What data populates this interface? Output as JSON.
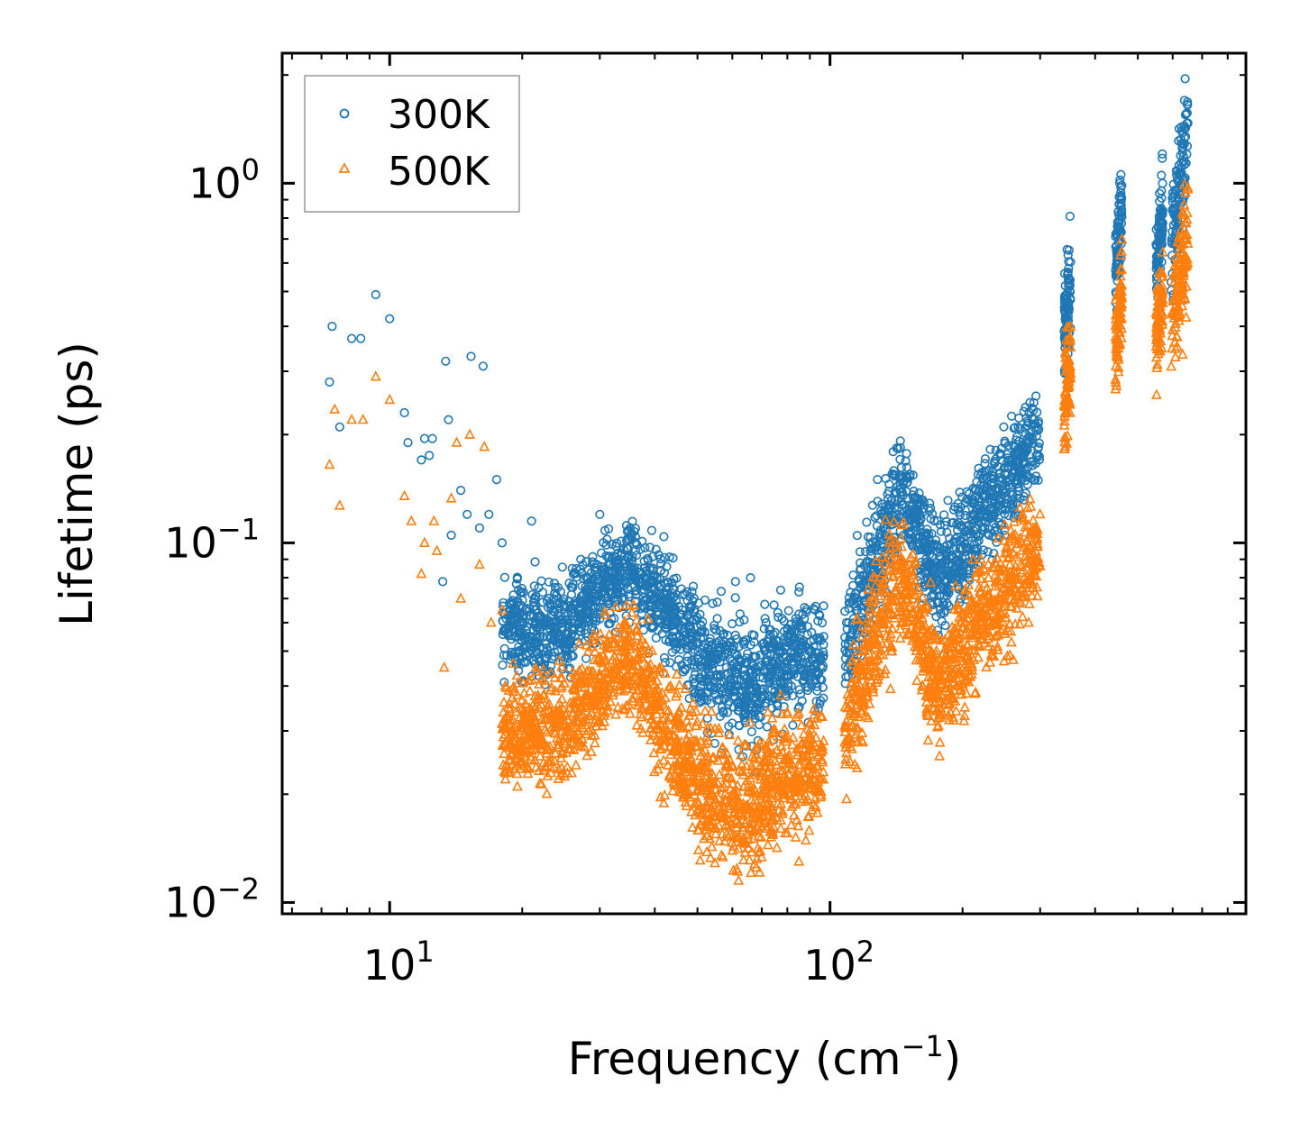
{
  "chart_data": {
    "type": "scatter",
    "xscale": "log",
    "yscale": "log",
    "xlabel": "Frequency (cm",
    "xlabel_sup": "−1",
    "xlabel_tail": ")",
    "ylabel": "Lifetime (ps)",
    "xlim": [
      5.7,
      880
    ],
    "ylim": [
      0.0093,
      2.3
    ],
    "x_ticks": [
      {
        "value": 10,
        "base": "10",
        "exp": "1"
      },
      {
        "value": 100,
        "base": "10",
        "exp": "2"
      }
    ],
    "y_ticks": [
      {
        "value": 1,
        "base": "10",
        "exp": "0"
      },
      {
        "value": 0.1,
        "base": "10",
        "exp": "−1"
      },
      {
        "value": 0.01,
        "base": "10",
        "exp": "−2"
      }
    ],
    "legend_position": "top-left",
    "series": [
      {
        "name": "300K",
        "marker": "circle",
        "color": "#1f77b4",
        "sparse_points": [
          [
            7.3,
            0.28
          ],
          [
            7.4,
            0.4
          ],
          [
            7.7,
            0.21
          ],
          [
            8.2,
            0.37
          ],
          [
            8.6,
            0.37
          ],
          [
            9.3,
            0.49
          ],
          [
            10.0,
            0.42
          ],
          [
            10.8,
            0.23
          ],
          [
            11.0,
            0.19
          ],
          [
            11.8,
            0.17
          ],
          [
            12.0,
            0.195
          ],
          [
            12.3,
            0.175
          ],
          [
            12.5,
            0.195
          ],
          [
            13.2,
            0.078
          ],
          [
            13.4,
            0.32
          ],
          [
            13.6,
            0.22
          ],
          [
            13.8,
            0.105
          ],
          [
            14.5,
            0.14
          ],
          [
            15.0,
            0.12
          ],
          [
            15.3,
            0.33
          ],
          [
            16.0,
            0.11
          ],
          [
            16.3,
            0.31
          ],
          [
            16.8,
            0.12
          ],
          [
            17.5,
            0.15
          ],
          [
            18.0,
            0.1
          ],
          [
            19.5,
            0.08
          ],
          [
            21.0,
            0.115
          ],
          [
            30.0,
            0.12
          ],
          [
            61.0,
            0.078
          ],
          [
            66.0,
            0.08
          ],
          [
            85.0,
            0.073
          ]
        ],
        "bands": [
          {
            "x": [
              18,
              26
            ],
            "y_mid": [
              0.055,
              0.06
            ],
            "spread": 1.35
          },
          {
            "x": [
              26,
              36
            ],
            "y_mid": [
              0.065,
              0.09
            ],
            "spread": 1.3
          },
          {
            "x": [
              36,
              50
            ],
            "y_mid": [
              0.085,
              0.05
            ],
            "spread": 1.35
          },
          {
            "x": [
              50,
              70
            ],
            "y_mid": [
              0.048,
              0.038
            ],
            "spread": 1.4
          },
          {
            "x": [
              70,
              97
            ],
            "y_mid": [
              0.045,
              0.05
            ],
            "spread": 1.35
          },
          {
            "x": [
              108,
              145
            ],
            "y_mid": [
              0.05,
              0.14
            ],
            "spread": 1.4
          },
          {
            "x": [
              145,
              175
            ],
            "y_mid": [
              0.14,
              0.08
            ],
            "spread": 1.35
          },
          {
            "x": [
              175,
              215
            ],
            "y_mid": [
              0.075,
              0.11
            ],
            "spread": 1.4
          },
          {
            "x": [
              215,
              300
            ],
            "y_mid": [
              0.12,
              0.2
            ],
            "spread": 1.3
          },
          {
            "x": [
              340,
              352
            ],
            "y_mid": [
              0.38,
              0.55
            ],
            "spread": 1.35
          },
          {
            "x": [
              445,
              460
            ],
            "y_mid": [
              0.55,
              0.85
            ],
            "spread": 1.3
          },
          {
            "x": [
              550,
              570
            ],
            "y_mid": [
              0.55,
              0.85
            ],
            "spread": 1.3
          },
          {
            "x": [
              595,
              650
            ],
            "y_mid": [
              0.65,
              1.5
            ],
            "spread": 1.4
          }
        ]
      },
      {
        "name": "500K",
        "marker": "triangle",
        "color": "#ff7f0e",
        "sparse_points": [
          [
            7.3,
            0.165
          ],
          [
            7.5,
            0.235
          ],
          [
            7.7,
            0.127
          ],
          [
            8.2,
            0.22
          ],
          [
            8.7,
            0.22
          ],
          [
            9.3,
            0.29
          ],
          [
            10.0,
            0.25
          ],
          [
            10.8,
            0.135
          ],
          [
            11.2,
            0.115
          ],
          [
            11.8,
            0.082
          ],
          [
            12.0,
            0.1
          ],
          [
            12.6,
            0.115
          ],
          [
            12.8,
            0.095
          ],
          [
            13.3,
            0.045
          ],
          [
            13.8,
            0.133
          ],
          [
            14.2,
            0.19
          ],
          [
            14.5,
            0.07
          ],
          [
            15.2,
            0.2
          ],
          [
            16.0,
            0.087
          ],
          [
            16.4,
            0.185
          ],
          [
            17.0,
            0.06
          ],
          [
            18.0,
            0.065
          ],
          [
            19.5,
            0.021
          ],
          [
            62.0,
            0.0115
          ],
          [
            68.0,
            0.0125
          ],
          [
            85.0,
            0.013
          ]
        ],
        "bands": [
          {
            "x": [
              18,
              26
            ],
            "y_mid": [
              0.029,
              0.032
            ],
            "spread": 1.35
          },
          {
            "x": [
              26,
              36
            ],
            "y_mid": [
              0.034,
              0.05
            ],
            "spread": 1.35
          },
          {
            "x": [
              36,
              50
            ],
            "y_mid": [
              0.045,
              0.022
            ],
            "spread": 1.4
          },
          {
            "x": [
              50,
              70
            ],
            "y_mid": [
              0.02,
              0.018
            ],
            "spread": 1.45
          },
          {
            "x": [
              70,
              97
            ],
            "y_mid": [
              0.021,
              0.024
            ],
            "spread": 1.4
          },
          {
            "x": [
              108,
              145
            ],
            "y_mid": [
              0.03,
              0.085
            ],
            "spread": 1.45
          },
          {
            "x": [
              145,
              175
            ],
            "y_mid": [
              0.08,
              0.04
            ],
            "spread": 1.4
          },
          {
            "x": [
              175,
              215
            ],
            "y_mid": [
              0.038,
              0.06
            ],
            "spread": 1.45
          },
          {
            "x": [
              215,
              300
            ],
            "y_mid": [
              0.06,
              0.1
            ],
            "spread": 1.4
          },
          {
            "x": [
              340,
              352
            ],
            "y_mid": [
              0.22,
              0.35
            ],
            "spread": 1.35
          },
          {
            "x": [
              445,
              460
            ],
            "y_mid": [
              0.35,
              0.5
            ],
            "spread": 1.3
          },
          {
            "x": [
              550,
              570
            ],
            "y_mid": [
              0.36,
              0.5
            ],
            "spread": 1.3
          },
          {
            "x": [
              595,
              650
            ],
            "y_mid": [
              0.38,
              0.75
            ],
            "spread": 1.4
          }
        ]
      }
    ]
  }
}
